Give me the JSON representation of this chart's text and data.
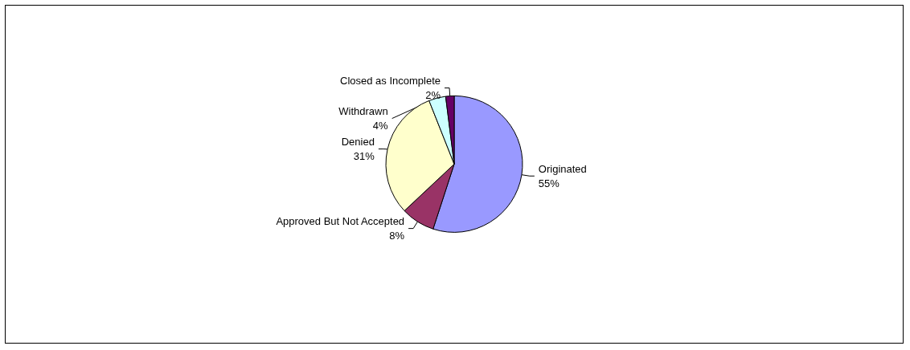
{
  "chart_data": {
    "type": "pie",
    "categories": [
      "Originated",
      "Approved But Not Accepted",
      "Denied",
      "Withdrawn",
      "Closed as Incomplete"
    ],
    "values": [
      55,
      8,
      31,
      4,
      2
    ],
    "value_labels": [
      "55%",
      "8%",
      "31%",
      "4%",
      "2%"
    ],
    "colors": [
      "#9999ff",
      "#993366",
      "#ffffcc",
      "#ccffff",
      "#660066"
    ],
    "legend": false
  }
}
